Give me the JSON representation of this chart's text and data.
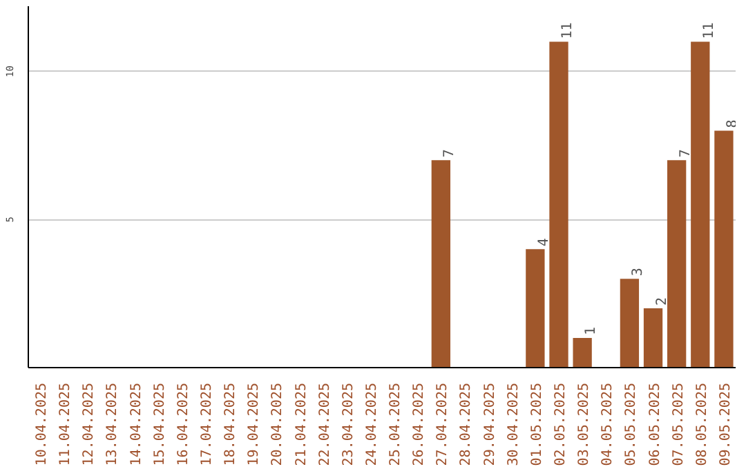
{
  "chart_data": {
    "type": "bar",
    "categories": [
      "10.04.2025",
      "11.04.2025",
      "12.04.2025",
      "13.04.2025",
      "14.04.2025",
      "15.04.2025",
      "16.04.2025",
      "17.04.2025",
      "18.04.2025",
      "19.04.2025",
      "20.04.2025",
      "21.04.2025",
      "22.04.2025",
      "23.04.2025",
      "24.04.2025",
      "25.04.2025",
      "26.04.2025",
      "27.04.2025",
      "28.04.2025",
      "29.04.2025",
      "30.04.2025",
      "01.05.2025",
      "02.05.2025",
      "03.05.2025",
      "04.05.2025",
      "05.05.2025",
      "06.05.2025",
      "07.05.2025",
      "08.05.2025",
      "09.05.2025"
    ],
    "values": [
      0,
      0,
      0,
      0,
      0,
      0,
      0,
      0,
      0,
      0,
      0,
      0,
      0,
      0,
      0,
      0,
      0,
      7,
      0,
      0,
      0,
      4,
      11,
      1,
      0,
      3,
      2,
      7,
      11,
      8
    ],
    "value_labels": [
      null,
      null,
      null,
      null,
      null,
      null,
      null,
      null,
      null,
      null,
      null,
      null,
      null,
      null,
      null,
      null,
      null,
      "7",
      null,
      null,
      null,
      "4",
      "11",
      "1",
      null,
      "3",
      "2",
      "7",
      "11",
      "8"
    ],
    "color": "#a0572b",
    "ylim": [
      0,
      12.2
    ],
    "yticks": [
      5,
      10
    ],
    "grid": "y"
  }
}
